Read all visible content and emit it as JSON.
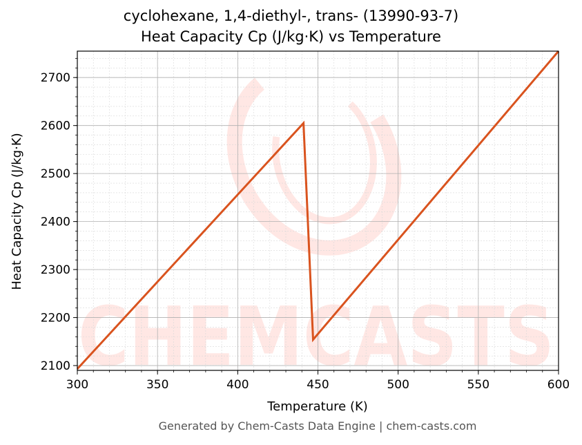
{
  "chart_data": {
    "type": "line",
    "title": "cyclohexane, 1,4-diethyl-, trans- (13990-93-7)",
    "subtitle": "Heat Capacity Cp (J/kg·K) vs Temperature",
    "xlabel": "Temperature (K)",
    "ylabel": "Heat Capacity Cp (J/kg·K)",
    "xlim": [
      300,
      600
    ],
    "ylim": [
      2090,
      2755
    ],
    "xticks": [
      300,
      350,
      400,
      450,
      500,
      550,
      600
    ],
    "yticks": [
      2100,
      2200,
      2300,
      2400,
      2500,
      2600,
      2700
    ],
    "grid": true,
    "series": [
      {
        "name": "Cp",
        "color": "#d9531e",
        "x": [
          300,
          441,
          447,
          600
        ],
        "y": [
          2093,
          2605,
          2154,
          2755
        ]
      }
    ],
    "watermark": "CHEMCASTS"
  },
  "footer": "Generated by Chem-Casts Data Engine | chem-casts.com"
}
